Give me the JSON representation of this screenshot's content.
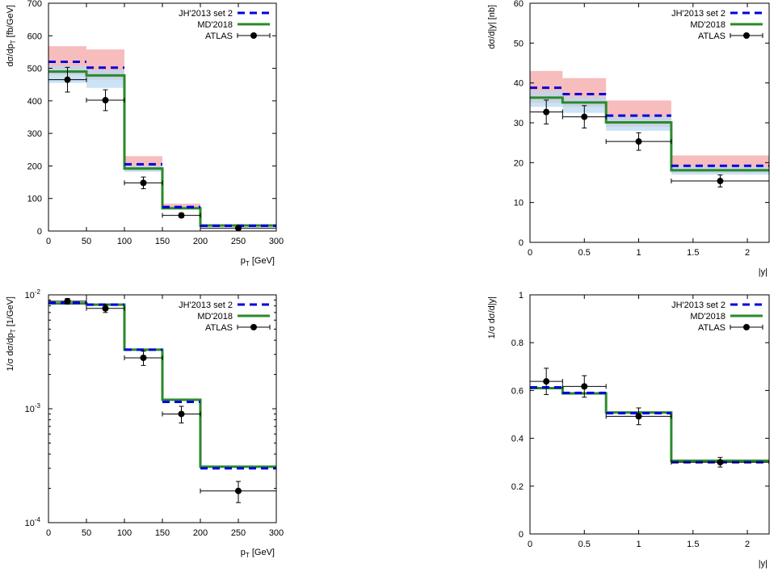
{
  "chart_data": [
    {
      "type": "line",
      "panel": "top-left",
      "xlabel_main": "p",
      "xlabel_sub": "T",
      "xlabel_tail": " [GeV]",
      "ylabel_main": "dσ/dp",
      "ylabel_sub": "T",
      "ylabel_tail": " [fb/GeV]",
      "xlim": [
        0,
        300
      ],
      "ylim": [
        0,
        700
      ],
      "xticks": [
        0,
        50,
        100,
        150,
        200,
        250,
        300
      ],
      "yticks": [
        0,
        100,
        200,
        300,
        400,
        500,
        600,
        700
      ],
      "yscale": "linear",
      "bin_edges": [
        0,
        50,
        100,
        150,
        200,
        300
      ],
      "legend": [
        "JH'2013 set 2",
        "MD'2018",
        "ATLAS"
      ],
      "series": [
        {
          "name": "JH'2013 set 2",
          "style": "dashed",
          "color": "#0000e0",
          "values": [
            520,
            502,
            205,
            74,
            16
          ],
          "band_low": [
            480,
            465,
            185,
            68,
            14
          ],
          "band_high": [
            568,
            558,
            230,
            84,
            20
          ],
          "band_color": "#f4a5a5"
        },
        {
          "name": "MD'2018",
          "style": "solid",
          "color": "#2a8a2a",
          "values": [
            490,
            478,
            192,
            70,
            17
          ],
          "band_low": [
            455,
            440,
            182,
            66,
            15
          ],
          "band_high": [
            508,
            495,
            200,
            75,
            19
          ],
          "band_color": "#b9d9f2"
        },
        {
          "name": "ATLAS",
          "style": "points",
          "color": "#000000",
          "x": [
            25,
            75,
            125,
            175,
            250
          ],
          "xerr": [
            25,
            25,
            25,
            25,
            50
          ],
          "y": [
            465,
            402,
            148,
            48,
            9
          ],
          "yerr": [
            38,
            32,
            18,
            7,
            3
          ]
        }
      ]
    },
    {
      "type": "line",
      "panel": "top-right",
      "xlabel_main": "|y|",
      "xlabel_sub": "",
      "xlabel_tail": "",
      "ylabel_main": "dσ/d|y| [nb]",
      "ylabel_sub": "",
      "ylabel_tail": "",
      "xlim": [
        0,
        2.2
      ],
      "ylim": [
        0,
        60
      ],
      "xticks": [
        0,
        0.5,
        1,
        1.5,
        2
      ],
      "yticks": [
        0,
        10,
        20,
        30,
        40,
        50,
        60
      ],
      "yscale": "linear",
      "bin_edges": [
        0,
        0.3,
        0.7,
        1.3,
        2.2
      ],
      "legend": [
        "JH'2013 set 2",
        "MD'2018",
        "ATLAS"
      ],
      "series": [
        {
          "name": "JH'2013 set 2",
          "style": "dashed",
          "color": "#0000e0",
          "values": [
            38.8,
            37.2,
            31.8,
            19.2
          ],
          "band_low": [
            35,
            34,
            29,
            17.5
          ],
          "band_high": [
            43,
            41.2,
            35.6,
            21.8
          ],
          "band_color": "#f4a5a5"
        },
        {
          "name": "MD'2018",
          "style": "solid",
          "color": "#2a8a2a",
          "values": [
            36.3,
            35.1,
            30.1,
            18.1
          ],
          "band_low": [
            34,
            32.5,
            28,
            17
          ],
          "band_high": [
            38,
            36.5,
            31.5,
            19
          ],
          "band_color": "#b9d9f2"
        },
        {
          "name": "ATLAS",
          "style": "points",
          "color": "#000000",
          "x": [
            0.15,
            0.5,
            1.0,
            1.75
          ],
          "xerr": [
            0.15,
            0.2,
            0.3,
            0.45
          ],
          "y": [
            32.7,
            31.5,
            25.3,
            15.4
          ],
          "yerr": [
            3.0,
            2.8,
            2.2,
            1.5
          ]
        }
      ]
    },
    {
      "type": "line",
      "panel": "bottom-left",
      "xlabel_main": "p",
      "xlabel_sub": "T",
      "xlabel_tail": " [GeV]",
      "ylabel_main": "1/σ dσ/dp",
      "ylabel_sub": "T",
      "ylabel_tail": "  [1/GeV]",
      "xlim": [
        0,
        300
      ],
      "ylim": [
        0.0001,
        0.01
      ],
      "xticks": [
        0,
        50,
        100,
        150,
        200,
        250,
        300
      ],
      "yticks": [
        0.0001,
        0.001,
        0.01
      ],
      "yticklabels": [
        {
          "base": "10",
          "exp": "-4"
        },
        {
          "base": "10",
          "exp": "-3"
        },
        {
          "base": "10",
          "exp": "-2"
        }
      ],
      "yscale": "log",
      "bin_edges": [
        0,
        50,
        100,
        150,
        200,
        300
      ],
      "legend": [
        "JH'2013 set 2",
        "MD'2018",
        "ATLAS"
      ],
      "series": [
        {
          "name": "JH'2013 set 2",
          "style": "dashed",
          "color": "#0000e0",
          "values": [
            0.0085,
            0.0082,
            0.0033,
            0.00115,
            0.0003
          ]
        },
        {
          "name": "MD'2018",
          "style": "solid",
          "color": "#2a8a2a",
          "values": [
            0.0084,
            0.0082,
            0.0033,
            0.0012,
            0.00031
          ]
        },
        {
          "name": "ATLAS",
          "style": "points",
          "color": "#000000",
          "x": [
            25,
            75,
            125,
            175,
            250
          ],
          "xerr": [
            25,
            25,
            25,
            25,
            50
          ],
          "y": [
            0.0088,
            0.0076,
            0.0028,
            0.0009,
            0.00019
          ],
          "ylo": [
            0.0083,
            0.007,
            0.0024,
            0.00075,
            0.00015
          ],
          "yhi": [
            0.0093,
            0.0082,
            0.0032,
            0.00105,
            0.00023
          ]
        }
      ]
    },
    {
      "type": "line",
      "panel": "bottom-right",
      "xlabel_main": "|y|",
      "xlabel_sub": "",
      "xlabel_tail": "",
      "ylabel_main": "1/σ dσ/d|y|",
      "ylabel_sub": "",
      "ylabel_tail": "",
      "xlim": [
        0,
        2.2
      ],
      "ylim": [
        0,
        1
      ],
      "xticks": [
        0,
        0.5,
        1,
        1.5,
        2
      ],
      "yticks": [
        0,
        0.2,
        0.4,
        0.6,
        0.8,
        1
      ],
      "yscale": "linear",
      "bin_edges": [
        0,
        0.3,
        0.7,
        1.3,
        2.2
      ],
      "legend": [
        "JH'2013 set 2",
        "MD'2018",
        "ATLAS"
      ],
      "series": [
        {
          "name": "JH'2013 set 2",
          "style": "dashed",
          "color": "#0000e0",
          "values": [
            0.613,
            0.59,
            0.505,
            0.3
          ]
        },
        {
          "name": "MD'2018",
          "style": "solid",
          "color": "#2a8a2a",
          "values": [
            0.61,
            0.588,
            0.508,
            0.306
          ]
        },
        {
          "name": "ATLAS",
          "style": "points",
          "color": "#000000",
          "x": [
            0.15,
            0.5,
            1.0,
            1.75
          ],
          "xerr": [
            0.15,
            0.2,
            0.3,
            0.45
          ],
          "y": [
            0.638,
            0.617,
            0.492,
            0.3
          ],
          "yerr": [
            0.055,
            0.045,
            0.035,
            0.02
          ]
        }
      ]
    }
  ]
}
